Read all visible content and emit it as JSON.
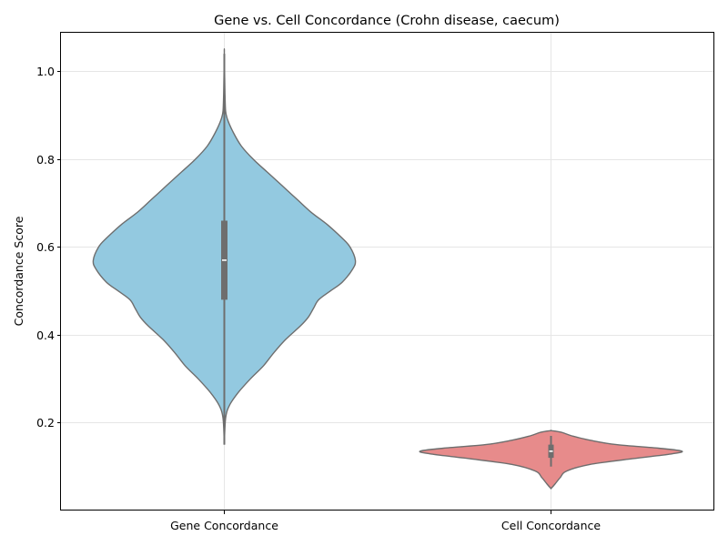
{
  "chart_data": {
    "type": "violin",
    "title": "Gene vs. Cell Concordance (Crohn disease, caecum)",
    "xlabel": "",
    "ylabel": "Concordance Score",
    "ylim": [
      0.0,
      1.09
    ],
    "y_ticks": [
      0.2,
      0.4,
      0.6,
      0.8,
      1.0
    ],
    "y_tick_labels": [
      "0.2",
      "0.4",
      "0.6",
      "0.8",
      "1.0"
    ],
    "grid": true,
    "categories": [
      "Gene Concordance",
      "Cell Concordance"
    ],
    "series": [
      {
        "category": "Gene Concordance",
        "color": "#93c9e0",
        "min": 0.15,
        "q1": 0.48,
        "median": 0.57,
        "q3": 0.66,
        "max": 1.04,
        "density": [
          [
            0.15,
            0.0
          ],
          [
            0.21,
            0.01
          ],
          [
            0.24,
            0.04
          ],
          [
            0.27,
            0.11
          ],
          [
            0.3,
            0.2
          ],
          [
            0.33,
            0.3
          ],
          [
            0.36,
            0.38
          ],
          [
            0.39,
            0.47
          ],
          [
            0.42,
            0.58
          ],
          [
            0.44,
            0.64
          ],
          [
            0.46,
            0.68
          ],
          [
            0.48,
            0.72
          ],
          [
            0.5,
            0.81
          ],
          [
            0.52,
            0.9
          ],
          [
            0.55,
            0.98
          ],
          [
            0.57,
            1.0
          ],
          [
            0.6,
            0.96
          ],
          [
            0.62,
            0.9
          ],
          [
            0.65,
            0.79
          ],
          [
            0.68,
            0.66
          ],
          [
            0.71,
            0.55
          ],
          [
            0.74,
            0.44
          ],
          [
            0.77,
            0.33
          ],
          [
            0.8,
            0.22
          ],
          [
            0.83,
            0.13
          ],
          [
            0.86,
            0.07
          ],
          [
            0.89,
            0.025
          ],
          [
            0.91,
            0.01
          ],
          [
            0.95,
            0.005
          ],
          [
            1.04,
            0.0
          ]
        ]
      },
      {
        "category": "Cell Concordance",
        "color": "#e78b8b",
        "min": 0.1,
        "q1": 0.12,
        "median": 0.135,
        "q3": 0.15,
        "max": 0.17,
        "density": [
          [
            0.05,
            0.0
          ],
          [
            0.06,
            0.03
          ],
          [
            0.075,
            0.07
          ],
          [
            0.09,
            0.12
          ],
          [
            0.105,
            0.3
          ],
          [
            0.118,
            0.62
          ],
          [
            0.128,
            0.9
          ],
          [
            0.135,
            1.0
          ],
          [
            0.142,
            0.82
          ],
          [
            0.15,
            0.5
          ],
          [
            0.16,
            0.3
          ],
          [
            0.17,
            0.16
          ],
          [
            0.178,
            0.08
          ],
          [
            0.182,
            0.0
          ]
        ]
      }
    ]
  }
}
